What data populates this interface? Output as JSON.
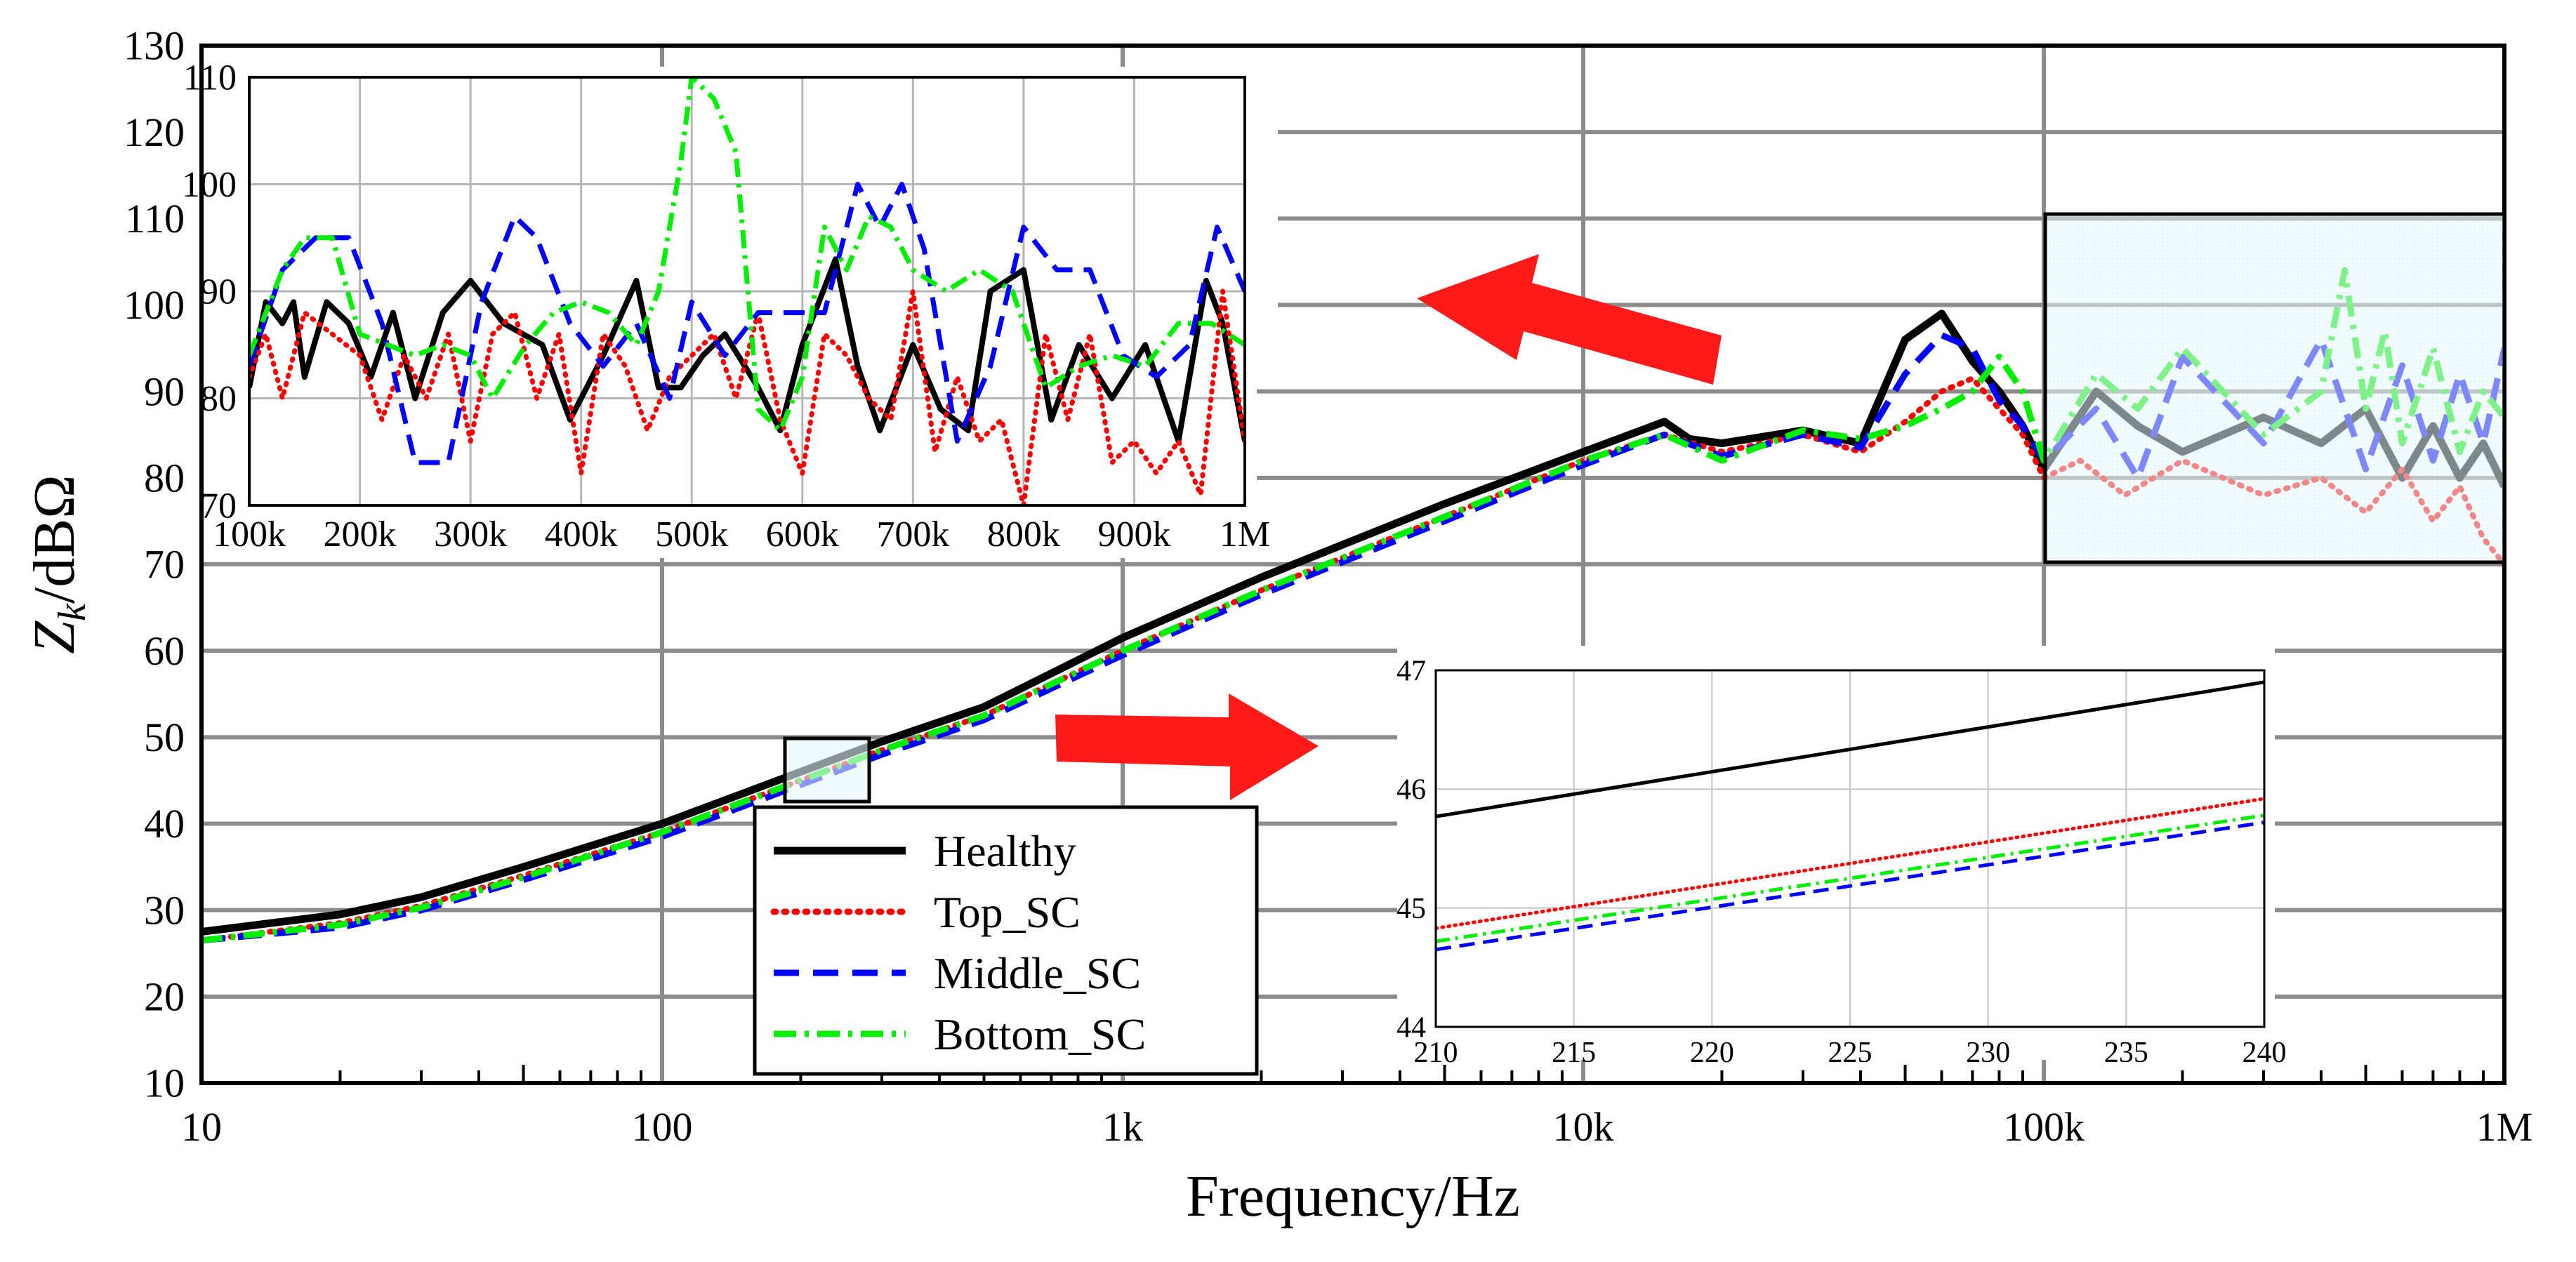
{
  "chart_data": [
    {
      "id": "main",
      "type": "line",
      "xscale": "log",
      "xlim": [
        10,
        1000000
      ],
      "ylim": [
        10,
        130
      ],
      "xlabel": "Frequency/Hz",
      "ylabel_main": "Z",
      "ylabel_sub": "k",
      "ylabel_rest": "/dBΩ",
      "xticks": [
        10,
        100,
        1000,
        10000,
        100000,
        1000000
      ],
      "xtick_labels": [
        "10",
        "100",
        "1k",
        "10k",
        "100k",
        "1M"
      ],
      "yticks": [
        10,
        20,
        30,
        40,
        50,
        60,
        70,
        80,
        90,
        100,
        110,
        120,
        130
      ],
      "ytick_labels": [
        "10",
        "20",
        "30",
        "40",
        "50",
        "60",
        "70",
        "80",
        "90",
        "100",
        "110",
        "120",
        "130"
      ],
      "legend": [
        "Healthy",
        "Top_SC",
        "Middle_SC",
        "Bottom_SC"
      ],
      "series": [
        {
          "name": "Healthy",
          "color": "#000000",
          "style": "solid",
          "x": [
            10,
            20,
            30,
            50,
            100,
            200,
            300,
            500,
            1000,
            2000,
            5000,
            10000,
            15000,
            17000,
            20000,
            30000,
            40000,
            50000,
            60000,
            70000,
            80000,
            90000,
            100000,
            130000,
            160000,
            200000,
            300000,
            400000,
            500000,
            600000,
            700000,
            800000,
            900000,
            1000000
          ],
          "y": [
            27.5,
            29.5,
            31.5,
            35,
            40,
            46,
            49.5,
            53.5,
            61.5,
            68.5,
            77,
            83,
            86.5,
            84.5,
            84,
            85.5,
            84,
            96,
            99,
            93.5,
            90,
            86,
            81,
            90,
            86,
            83,
            87,
            84,
            88,
            80,
            86,
            80,
            84,
            79
          ]
        },
        {
          "name": "Top_SC",
          "color": "#ff0000",
          "style": "dotted",
          "x": [
            10,
            20,
            30,
            50,
            100,
            200,
            300,
            500,
            1000,
            2000,
            5000,
            10000,
            15000,
            20000,
            30000,
            40000,
            50000,
            60000,
            70000,
            80000,
            90000,
            100000,
            120000,
            150000,
            200000,
            300000,
            400000,
            500000,
            600000,
            700000,
            800000,
            900000,
            1000000
          ],
          "y": [
            26.5,
            28.5,
            30.5,
            34,
            39,
            45,
            48.5,
            52.5,
            60,
            67,
            75.5,
            82,
            85,
            83,
            85,
            83,
            86.5,
            90,
            91.5,
            88,
            85,
            80,
            82,
            78,
            82,
            78,
            80,
            76,
            81,
            75,
            79,
            73,
            70
          ]
        },
        {
          "name": "Middle_SC",
          "color": "#0000ff",
          "style": "dashed",
          "x": [
            10,
            20,
            30,
            50,
            100,
            200,
            300,
            500,
            1000,
            2000,
            5000,
            10000,
            15000,
            20000,
            30000,
            40000,
            50000,
            60000,
            70000,
            80000,
            90000,
            100000,
            130000,
            160000,
            200000,
            300000,
            400000,
            500000,
            600000,
            700000,
            800000,
            900000,
            1000000
          ],
          "y": [
            26.5,
            28,
            30,
            33.5,
            38.5,
            44.5,
            48,
            52,
            59.5,
            66.5,
            75,
            81.5,
            85,
            82.5,
            85,
            83.5,
            92,
            96.5,
            95,
            89,
            86,
            82,
            88,
            80,
            94,
            84,
            96,
            81,
            93,
            82,
            92,
            84,
            95
          ]
        },
        {
          "name": "Bottom_SC",
          "color": "#00ee00",
          "style": "dashdot",
          "x": [
            10,
            20,
            30,
            50,
            100,
            200,
            300,
            500,
            1000,
            2000,
            5000,
            10000,
            15000,
            20000,
            30000,
            40000,
            50000,
            60000,
            70000,
            80000,
            90000,
            100000,
            130000,
            160000,
            200000,
            300000,
            400000,
            450000,
            500000,
            550000,
            600000,
            700000,
            800000,
            900000,
            1000000
          ],
          "y": [
            26.5,
            28.3,
            30.3,
            33.8,
            39,
            45,
            48.5,
            52.5,
            60,
            67,
            75.5,
            82,
            85,
            82,
            85.5,
            84.5,
            86,
            88,
            90,
            94,
            90,
            82,
            92,
            88,
            95,
            85,
            90,
            104,
            88,
            97,
            84,
            95,
            83,
            90,
            87
          ]
        }
      ]
    },
    {
      "id": "inset_high",
      "type": "line",
      "xscale": "linear",
      "xlim": [
        100,
        1000
      ],
      "ylim": [
        70,
        110
      ],
      "xticks": [
        100,
        200,
        300,
        400,
        500,
        600,
        700,
        800,
        900,
        1000
      ],
      "xtick_labels": [
        "100k",
        "200k",
        "300k",
        "400k",
        "500k",
        "600k",
        "700k",
        "800k",
        "900k",
        "1M"
      ],
      "yticks": [
        70,
        80,
        90,
        100,
        110
      ],
      "ytick_labels": [
        "70",
        "80",
        "90",
        "100",
        "110"
      ],
      "series": [
        {
          "name": "Healthy",
          "color": "#000000",
          "style": "solid",
          "x": [
            100,
            115,
            130,
            140,
            150,
            170,
            190,
            210,
            230,
            250,
            275,
            300,
            330,
            365,
            390,
            420,
            450,
            470,
            490,
            510,
            530,
            560,
            580,
            600,
            630,
            650,
            670,
            700,
            725,
            750,
            770,
            800,
            825,
            850,
            880,
            910,
            940,
            965,
            980,
            1000
          ],
          "y": [
            81,
            89,
            87,
            89,
            82,
            89,
            87,
            82,
            88,
            80,
            88,
            91,
            87,
            85,
            78,
            84,
            91,
            81,
            81,
            84,
            86,
            81,
            77,
            85,
            93,
            83,
            77,
            85,
            79,
            77,
            90,
            92,
            78,
            85,
            80,
            85,
            76,
            91,
            87,
            76
          ]
        },
        {
          "name": "Top_SC",
          "color": "#ff0000",
          "style": "dotted",
          "x": [
            100,
            115,
            130,
            150,
            175,
            200,
            220,
            240,
            260,
            280,
            300,
            320,
            340,
            360,
            380,
            400,
            420,
            440,
            460,
            480,
            500,
            520,
            540,
            560,
            580,
            600,
            620,
            640,
            660,
            680,
            700,
            720,
            740,
            760,
            780,
            800,
            820,
            840,
            860,
            880,
            900,
            920,
            940,
            960,
            980,
            1000
          ],
          "y": [
            82,
            86,
            80,
            88,
            86,
            84,
            78,
            84,
            80,
            86,
            76,
            86,
            88,
            80,
            86,
            73,
            86,
            83,
            77,
            82,
            84,
            86,
            80,
            88,
            78,
            73,
            86,
            84,
            80,
            78,
            90,
            75,
            82,
            76,
            78,
            70,
            86,
            78,
            86,
            74,
            76,
            73,
            76,
            71,
            90,
            76
          ]
        },
        {
          "name": "Middle_SC",
          "color": "#0000ff",
          "style": "dashed",
          "x": [
            100,
            130,
            160,
            190,
            220,
            250,
            280,
            310,
            340,
            360,
            390,
            420,
            450,
            480,
            500,
            530,
            560,
            590,
            620,
            650,
            670,
            690,
            710,
            740,
            770,
            800,
            830,
            860,
            890,
            920,
            950,
            975,
            1000
          ],
          "y": [
            83,
            92,
            95,
            95,
            87,
            74,
            74,
            89,
            97,
            95,
            87,
            83,
            87,
            80,
            89,
            84,
            88,
            88,
            88,
            100,
            96,
            100,
            94,
            76,
            83,
            96,
            92,
            92,
            84,
            82,
            85,
            96,
            90
          ]
        },
        {
          "name": "Bottom_SC",
          "color": "#00ee00",
          "style": "dashdot",
          "x": [
            100,
            115,
            130,
            150,
            175,
            200,
            225,
            250,
            275,
            300,
            320,
            350,
            375,
            400,
            425,
            450,
            470,
            490,
            500,
            520,
            540,
            560,
            580,
            600,
            620,
            640,
            660,
            680,
            700,
            730,
            760,
            790,
            820,
            850,
            880,
            910,
            940,
            970,
            1000
          ],
          "y": [
            84,
            88,
            92,
            95,
            95,
            86,
            85,
            84,
            85,
            84,
            80,
            85,
            88,
            89,
            88,
            85,
            90,
            102,
            110,
            108,
            103,
            79,
            77,
            82,
            96,
            92,
            97,
            96,
            92,
            90,
            92,
            90,
            81,
            83,
            84,
            83,
            87,
            87,
            85
          ]
        }
      ]
    },
    {
      "id": "inset_low",
      "type": "line",
      "xscale": "linear",
      "xlim": [
        210,
        240
      ],
      "ylim": [
        44,
        47
      ],
      "xticks": [
        210,
        215,
        220,
        225,
        230,
        235,
        240
      ],
      "xtick_labels": [
        "210",
        "215",
        "220",
        "225",
        "230",
        "235",
        "240"
      ],
      "yticks": [
        44,
        45,
        46,
        47
      ],
      "ytick_labels": [
        "44",
        "45",
        "46",
        "47"
      ],
      "series": [
        {
          "name": "Healthy",
          "color": "#000000",
          "style": "solid",
          "x": [
            210,
            240
          ],
          "y": [
            45.77,
            46.9
          ]
        },
        {
          "name": "Top_SC",
          "color": "#ff0000",
          "style": "dotted",
          "x": [
            210,
            240
          ],
          "y": [
            44.83,
            45.92
          ]
        },
        {
          "name": "Middle_SC",
          "color": "#0000ff",
          "style": "dashed",
          "x": [
            210,
            240
          ],
          "y": [
            44.65,
            45.72
          ]
        },
        {
          "name": "Bottom_SC",
          "color": "#00ee00",
          "style": "dashdot",
          "x": [
            210,
            240
          ],
          "y": [
            44.72,
            45.78
          ]
        }
      ]
    }
  ]
}
